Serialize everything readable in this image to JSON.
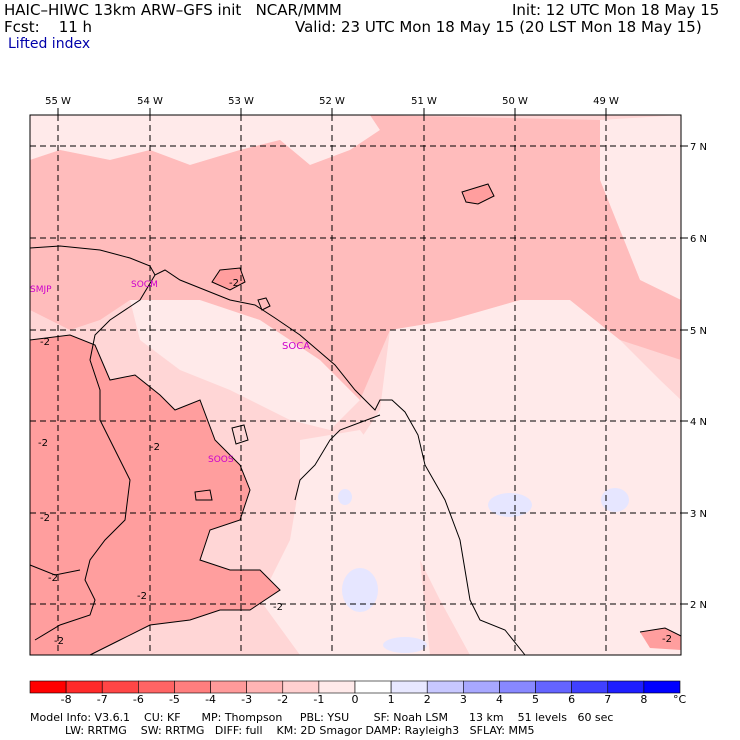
{
  "header": {
    "title_line": "HAIC–HIWC 13km ARW–GFS init   NCAR/MMM",
    "fcst_line": "Fcst:    11 h",
    "field_name": "Lifted index",
    "init_line": "Init: 12 UTC Mon 18 May 15",
    "valid_line": "Valid: 23 UTC Mon 18 May 15 (20 LST Mon 18 May 15)"
  },
  "map": {
    "lon_labels": [
      "55 W",
      "54 W",
      "53 W",
      "52 W",
      "51 W",
      "50 W",
      "49 W"
    ],
    "lat_labels": [
      "7 N",
      "6 N",
      "5 N",
      "4 N",
      "3 N",
      "2 N"
    ],
    "station_labels": [
      "SMJP",
      "SOCM",
      "SOCA",
      "SOOS"
    ],
    "contour_labels": [
      "-2",
      "-2",
      "-2",
      "-2",
      "-2",
      "-2",
      "-2",
      "-2",
      "-2",
      "-2"
    ]
  },
  "colorbar": {
    "tick_labels": [
      "-8",
      "-7",
      "-6",
      "-5",
      "-4",
      "-3",
      "-2",
      "-1",
      "0",
      "1",
      "2",
      "3",
      "4",
      "5",
      "6",
      "7",
      "8"
    ],
    "unit": "°C",
    "colors": [
      "#ff0000",
      "#ff2a2a",
      "#ff4646",
      "#ff6464",
      "#ff7e7e",
      "#ff9a9a",
      "#ffb4b4",
      "#ffd0d0",
      "#ffeaea",
      "#ffffff",
      "#e8e8ff",
      "#c8c8ff",
      "#a8a8ff",
      "#8888ff",
      "#6464ff",
      "#4040ff",
      "#1e1eff",
      "#0000ff"
    ]
  },
  "footer": {
    "line1": "Model Info: V3.6.1    CU: KF      MP: Thompson     PBL: YSU       SF: Noah LSM      13 km    51 levels   60 sec",
    "line2": "          LW: RRTMG    SW: RRTMG   DIFF: full    KM: 2D Smagor DAMP: Rayleigh3   SFLAY: MM5"
  }
}
